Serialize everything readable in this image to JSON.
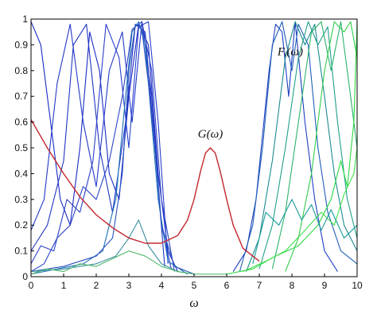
{
  "chart_data": {
    "type": "line",
    "xlabel": "ω",
    "ylabel": "",
    "xlim": [
      0,
      10
    ],
    "ylim": [
      0,
      1
    ],
    "x_ticks": [
      "0",
      "1",
      "2",
      "3",
      "4",
      "5",
      "6",
      "7",
      "8",
      "9",
      "10"
    ],
    "y_ticks": [
      "0",
      "0.1",
      "0.2",
      "0.3",
      "0.4",
      "0.5",
      "0.6",
      "0.7",
      "0.8",
      "0.9",
      "1"
    ],
    "grid": false,
    "annotations": [
      {
        "id": "g",
        "text": "G(ω)",
        "x": 5.5,
        "y": 0.54
      },
      {
        "id": "f",
        "text": "Fᵢ(ω)",
        "x": 7.95,
        "y": 0.86
      }
    ],
    "series": [
      {
        "id": "G",
        "color": "#c2272d",
        "x": [
          0,
          0.5,
          1,
          1.5,
          2,
          2.5,
          3,
          3.5,
          4,
          4.5,
          4.8,
          5,
          5.2,
          5.35,
          5.5,
          5.65,
          5.8,
          6,
          6.2,
          6.5,
          7
        ],
        "y": [
          0.61,
          0.5,
          0.4,
          0.31,
          0.24,
          0.19,
          0.15,
          0.13,
          0.13,
          0.16,
          0.22,
          0.3,
          0.41,
          0.48,
          0.5,
          0.48,
          0.41,
          0.3,
          0.2,
          0.11,
          0.06
        ]
      },
      {
        "id": "F1",
        "color": "#1a2bc4",
        "x": [
          0,
          0.3,
          0.6,
          0.9,
          1.2,
          1.5,
          1.8,
          2.1,
          2.4,
          2.7,
          3.0,
          3.3,
          3.6,
          3.9,
          4.2,
          4.5
        ],
        "y": [
          0.99,
          0.9,
          0.6,
          0.3,
          0.2,
          0.5,
          0.95,
          0.8,
          0.4,
          0.3,
          0.7,
          0.98,
          0.9,
          0.4,
          0.1,
          0.02
        ]
      },
      {
        "id": "F2",
        "color": "#2238c8",
        "x": [
          0,
          0.4,
          0.8,
          1.2,
          1.6,
          2.0,
          2.4,
          2.8,
          3.1,
          3.4,
          3.7,
          4.0,
          4.3
        ],
        "y": [
          0.18,
          0.3,
          0.75,
          0.98,
          0.6,
          0.35,
          0.8,
          0.95,
          0.6,
          0.99,
          0.7,
          0.2,
          0.03
        ]
      },
      {
        "id": "F3",
        "color": "#1f35c2",
        "x": [
          0,
          0.5,
          1.0,
          1.3,
          1.7,
          2.1,
          2.5,
          2.9,
          3.2,
          3.5,
          3.8,
          4.1
        ],
        "y": [
          0.1,
          0.2,
          0.45,
          0.9,
          0.98,
          0.5,
          0.25,
          0.6,
          0.98,
          0.95,
          0.5,
          0.04
        ]
      },
      {
        "id": "F4",
        "color": "#2a3fcc",
        "x": [
          0,
          0.3,
          0.7,
          1.1,
          1.5,
          1.9,
          2.3,
          2.7,
          3.0,
          3.3,
          3.6,
          3.9,
          4.2
        ],
        "y": [
          0.05,
          0.12,
          0.1,
          0.3,
          0.25,
          0.45,
          0.98,
          0.85,
          0.5,
          0.97,
          0.99,
          0.6,
          0.05
        ]
      },
      {
        "id": "F5",
        "color": "#2e44c6",
        "x": [
          0,
          0.4,
          0.8,
          1.2,
          1.6,
          2.0,
          2.4,
          2.8,
          3.1,
          3.4,
          3.7,
          4.0,
          4.4
        ],
        "y": [
          0.02,
          0.05,
          0.15,
          0.2,
          0.35,
          0.3,
          0.45,
          0.7,
          0.96,
          0.99,
          0.8,
          0.3,
          0.02
        ]
      },
      {
        "id": "F6",
        "color": "#1b6fb8",
        "x": [
          0,
          0.8,
          1.6,
          2.2,
          2.6,
          2.9,
          3.1,
          3.3,
          3.5,
          3.7,
          3.9,
          4.2,
          4.8
        ],
        "y": [
          0.01,
          0.03,
          0.05,
          0.1,
          0.3,
          0.7,
          0.95,
          0.99,
          0.9,
          0.6,
          0.3,
          0.06,
          0.01
        ]
      },
      {
        "id": "F7",
        "color": "#2a52c0",
        "x": [
          0,
          1.0,
          2.0,
          2.5,
          2.8,
          3.0,
          3.2,
          3.4,
          3.6,
          3.8,
          4.0,
          4.4,
          5.0
        ],
        "y": [
          0.02,
          0.04,
          0.08,
          0.15,
          0.4,
          0.8,
          0.98,
          0.96,
          0.75,
          0.5,
          0.2,
          0.04,
          0.01
        ]
      },
      {
        "id": "F8",
        "color": "#3a8f9e",
        "x": [
          0,
          1.0,
          2.0,
          2.6,
          3.0,
          3.3,
          3.6,
          4.0,
          4.5,
          5.0
        ],
        "y": [
          0.02,
          0.03,
          0.05,
          0.08,
          0.15,
          0.22,
          0.12,
          0.05,
          0.02,
          0.01
        ]
      },
      {
        "id": "F9",
        "color": "#4db86a",
        "x": [
          0,
          0.5,
          1.0,
          1.5,
          2.0,
          2.5,
          3.0,
          3.5,
          4.0,
          4.5,
          5.0,
          5.5,
          6.0
        ],
        "y": [
          0.01,
          0.03,
          0.02,
          0.05,
          0.04,
          0.07,
          0.1,
          0.08,
          0.04,
          0.02,
          0.01,
          0.01,
          0.01
        ]
      },
      {
        "id": "F10",
        "color": "#1e3fc2",
        "x": [
          6.2,
          6.6,
          6.9,
          7.1,
          7.3,
          7.5,
          7.7,
          7.9,
          8.1,
          8.4,
          8.7,
          9.0,
          9.4
        ],
        "y": [
          0.02,
          0.1,
          0.3,
          0.55,
          0.8,
          0.98,
          0.95,
          0.7,
          0.99,
          0.6,
          0.3,
          0.1,
          0.02
        ]
      },
      {
        "id": "F11",
        "color": "#1f5fb8",
        "x": [
          6.4,
          6.8,
          7.1,
          7.4,
          7.7,
          8.0,
          8.2,
          8.5,
          8.8,
          9.1,
          9.5,
          10
        ],
        "y": [
          0.02,
          0.2,
          0.5,
          0.9,
          0.99,
          0.8,
          0.98,
          0.9,
          0.5,
          0.25,
          0.1,
          0.05
        ]
      },
      {
        "id": "F12",
        "color": "#1c8a8f",
        "x": [
          6.6,
          7.0,
          7.4,
          7.8,
          8.1,
          8.4,
          8.7,
          9.0,
          9.3,
          9.6,
          10
        ],
        "y": [
          0.02,
          0.15,
          0.45,
          0.85,
          0.99,
          0.9,
          0.98,
          0.7,
          0.4,
          0.2,
          0.1
        ]
      },
      {
        "id": "F13",
        "color": "#20a08a",
        "x": [
          7.0,
          7.4,
          7.8,
          8.2,
          8.5,
          8.8,
          9.1,
          9.4,
          9.7,
          10
        ],
        "y": [
          0.03,
          0.2,
          0.5,
          0.85,
          0.99,
          0.9,
          0.97,
          0.6,
          0.3,
          0.15
        ]
      },
      {
        "id": "F14",
        "color": "#2ab36a",
        "x": [
          7.4,
          7.8,
          8.2,
          8.6,
          8.9,
          9.2,
          9.5,
          9.8,
          10
        ],
        "y": [
          0.03,
          0.25,
          0.6,
          0.95,
          0.99,
          0.8,
          0.99,
          0.7,
          0.5
        ]
      },
      {
        "id": "F15",
        "color": "#33cc4a",
        "x": [
          7.8,
          8.2,
          8.6,
          9.0,
          9.3,
          9.6,
          9.8,
          10
        ],
        "y": [
          0.02,
          0.15,
          0.4,
          0.8,
          0.99,
          0.95,
          0.99,
          0.85
        ]
      },
      {
        "id": "F16",
        "color": "#2bd842",
        "x": [
          6.0,
          6.8,
          7.5,
          8.2,
          8.8,
          9.2,
          9.5,
          9.7,
          9.9,
          10
        ],
        "y": [
          0.01,
          0.03,
          0.08,
          0.12,
          0.2,
          0.3,
          0.45,
          0.35,
          0.6,
          0.99
        ]
      },
      {
        "id": "F17",
        "color": "#3ee04a",
        "x": [
          6.5,
          7.2,
          7.8,
          8.4,
          8.9,
          9.3,
          9.6,
          9.9,
          10
        ],
        "y": [
          0.02,
          0.06,
          0.1,
          0.18,
          0.25,
          0.2,
          0.32,
          0.4,
          0.5
        ]
      },
      {
        "id": "F18",
        "color": "#1a9a9a",
        "x": [
          6.8,
          7.2,
          7.6,
          8.0,
          8.3,
          8.6,
          8.9,
          9.2,
          9.6,
          10
        ],
        "y": [
          0.05,
          0.25,
          0.2,
          0.3,
          0.22,
          0.28,
          0.18,
          0.26,
          0.15,
          0.2
        ]
      }
    ]
  }
}
